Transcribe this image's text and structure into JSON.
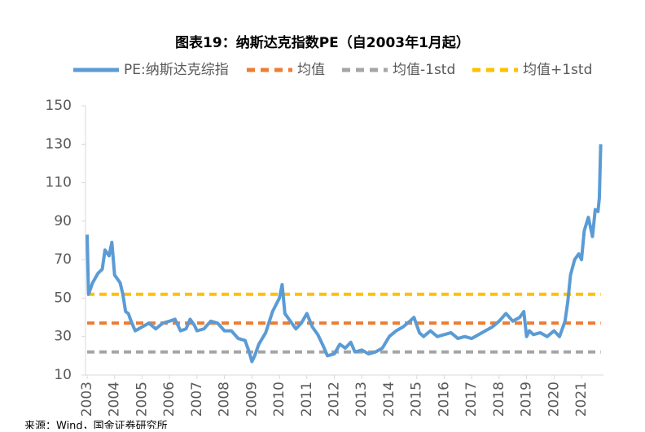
{
  "chart_data": {
    "type": "line",
    "title": "图表19：纳斯达克指数PE（自2003年1月起）",
    "source": "来源：Wind，国金证券研究所",
    "xlim": [
      2003,
      2021.8
    ],
    "xticks": [
      2003,
      2004,
      2005,
      2006,
      2007,
      2008,
      2009,
      2010,
      2011,
      2012,
      2013,
      2014,
      2015,
      2016,
      2017,
      2018,
      2019,
      2020,
      2021
    ],
    "ylim": [
      10,
      150
    ],
    "yticks": [
      10,
      30,
      50,
      70,
      90,
      110,
      130,
      150
    ],
    "series": [
      {
        "name": "PE:纳斯达克综指",
        "color": "#5b9bd5",
        "dashed": false,
        "x": [
          2003.0,
          2003.05,
          2003.2,
          2003.4,
          2003.55,
          2003.65,
          2003.8,
          2003.9,
          2004.0,
          2004.2,
          2004.3,
          2004.4,
          2004.5,
          2004.6,
          2004.75,
          2005.0,
          2005.25,
          2005.5,
          2005.75,
          2006.0,
          2006.2,
          2006.4,
          2006.6,
          2006.75,
          2006.9,
          2007.0,
          2007.25,
          2007.5,
          2007.75,
          2008.0,
          2008.25,
          2008.5,
          2008.75,
          2008.9,
          2009.0,
          2009.1,
          2009.25,
          2009.5,
          2009.75,
          2010.0,
          2010.1,
          2010.2,
          2010.4,
          2010.6,
          2010.8,
          2011.0,
          2011.2,
          2011.4,
          2011.6,
          2011.75,
          2012.0,
          2012.2,
          2012.4,
          2012.6,
          2012.75,
          2013.0,
          2013.25,
          2013.5,
          2013.75,
          2014.0,
          2014.25,
          2014.5,
          2014.75,
          2014.9,
          2015.0,
          2015.1,
          2015.25,
          2015.5,
          2015.75,
          2016.0,
          2016.25,
          2016.5,
          2016.75,
          2017.0,
          2017.25,
          2017.5,
          2017.75,
          2018.0,
          2018.25,
          2018.5,
          2018.75,
          2018.9,
          2019.0,
          2019.1,
          2019.25,
          2019.5,
          2019.75,
          2020.0,
          2020.2,
          2020.4,
          2020.5,
          2020.6,
          2020.75,
          2020.9,
          2021.0,
          2021.1,
          2021.25,
          2021.4,
          2021.5,
          2021.6,
          2021.65,
          2021.7
        ],
        "values": [
          83,
          52,
          58,
          63,
          65,
          75,
          72,
          79,
          62,
          58,
          52,
          43,
          42,
          38,
          33,
          35,
          37,
          34,
          37,
          38,
          39,
          33,
          34,
          39,
          36,
          33,
          34,
          38,
          37,
          33,
          33,
          29,
          28,
          22,
          17,
          20,
          26,
          32,
          43,
          50,
          57,
          42,
          38,
          34,
          37,
          42,
          35,
          31,
          25,
          20,
          21,
          26,
          24,
          27,
          22,
          23,
          21,
          22,
          24,
          30,
          33,
          35,
          38,
          40,
          36,
          32,
          30,
          33,
          30,
          31,
          32,
          29,
          30,
          29,
          31,
          33,
          35,
          38,
          42,
          38,
          40,
          43,
          30,
          33,
          31,
          32,
          30,
          33,
          30,
          38,
          48,
          62,
          70,
          73,
          70,
          85,
          92,
          82,
          96,
          95,
          102,
          130
        ]
      },
      {
        "name": "均值",
        "color": "#ed7d31",
        "dashed": true,
        "x": [
          2003,
          2021.7
        ],
        "values": [
          37,
          37
        ]
      },
      {
        "name": "均值-1std",
        "color": "#a5a5a5",
        "dashed": true,
        "x": [
          2003,
          2021.7
        ],
        "values": [
          22,
          22
        ]
      },
      {
        "name": "均值+1std",
        "color": "#ffc000",
        "dashed": true,
        "x": [
          2003,
          2021.7
        ],
        "values": [
          52,
          52
        ]
      }
    ]
  }
}
